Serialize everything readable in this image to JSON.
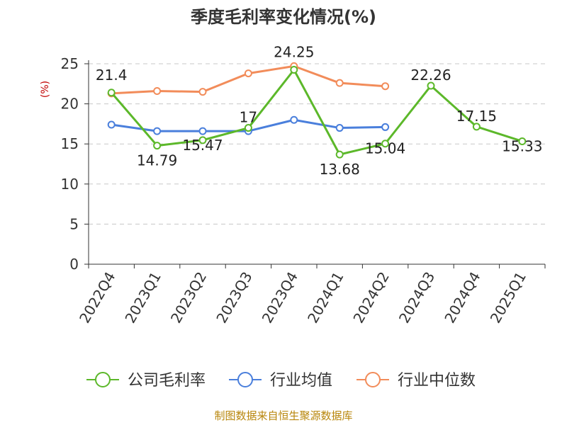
{
  "chart_data": {
    "type": "line",
    "title": "季度毛利率变化情况(%)",
    "ylabel": "(%)",
    "xlabel": "",
    "ylim": [
      0,
      25
    ],
    "yticks": [
      0,
      5,
      10,
      15,
      20,
      25
    ],
    "grid": true,
    "legend_position": "bottom",
    "categories": [
      "2022Q4",
      "2023Q1",
      "2023Q2",
      "2023Q3",
      "2023Q4",
      "2024Q1",
      "2024Q2",
      "2024Q3",
      "2024Q4",
      "2025Q1"
    ],
    "series": [
      {
        "name": "公司毛利率",
        "color": "#5cb82a",
        "values": [
          21.4,
          14.79,
          15.47,
          17,
          24.25,
          13.68,
          15.04,
          22.26,
          17.15,
          15.33
        ],
        "labels": [
          "21.4",
          "14.79",
          "15.47",
          "17",
          "24.25",
          "13.68",
          "15.04",
          "22.26",
          "17.15",
          "15.33"
        ]
      },
      {
        "name": "行业均值",
        "color": "#4a7fdc",
        "values": [
          17.4,
          16.6,
          16.6,
          16.6,
          18.0,
          17.0,
          17.1,
          null,
          null,
          null
        ]
      },
      {
        "name": "行业中位数",
        "color": "#f28c5a",
        "values": [
          21.3,
          21.6,
          21.5,
          23.8,
          24.7,
          22.6,
          22.2,
          null,
          null,
          null
        ]
      }
    ],
    "source": "制图数据来自恒生聚源数据库"
  }
}
